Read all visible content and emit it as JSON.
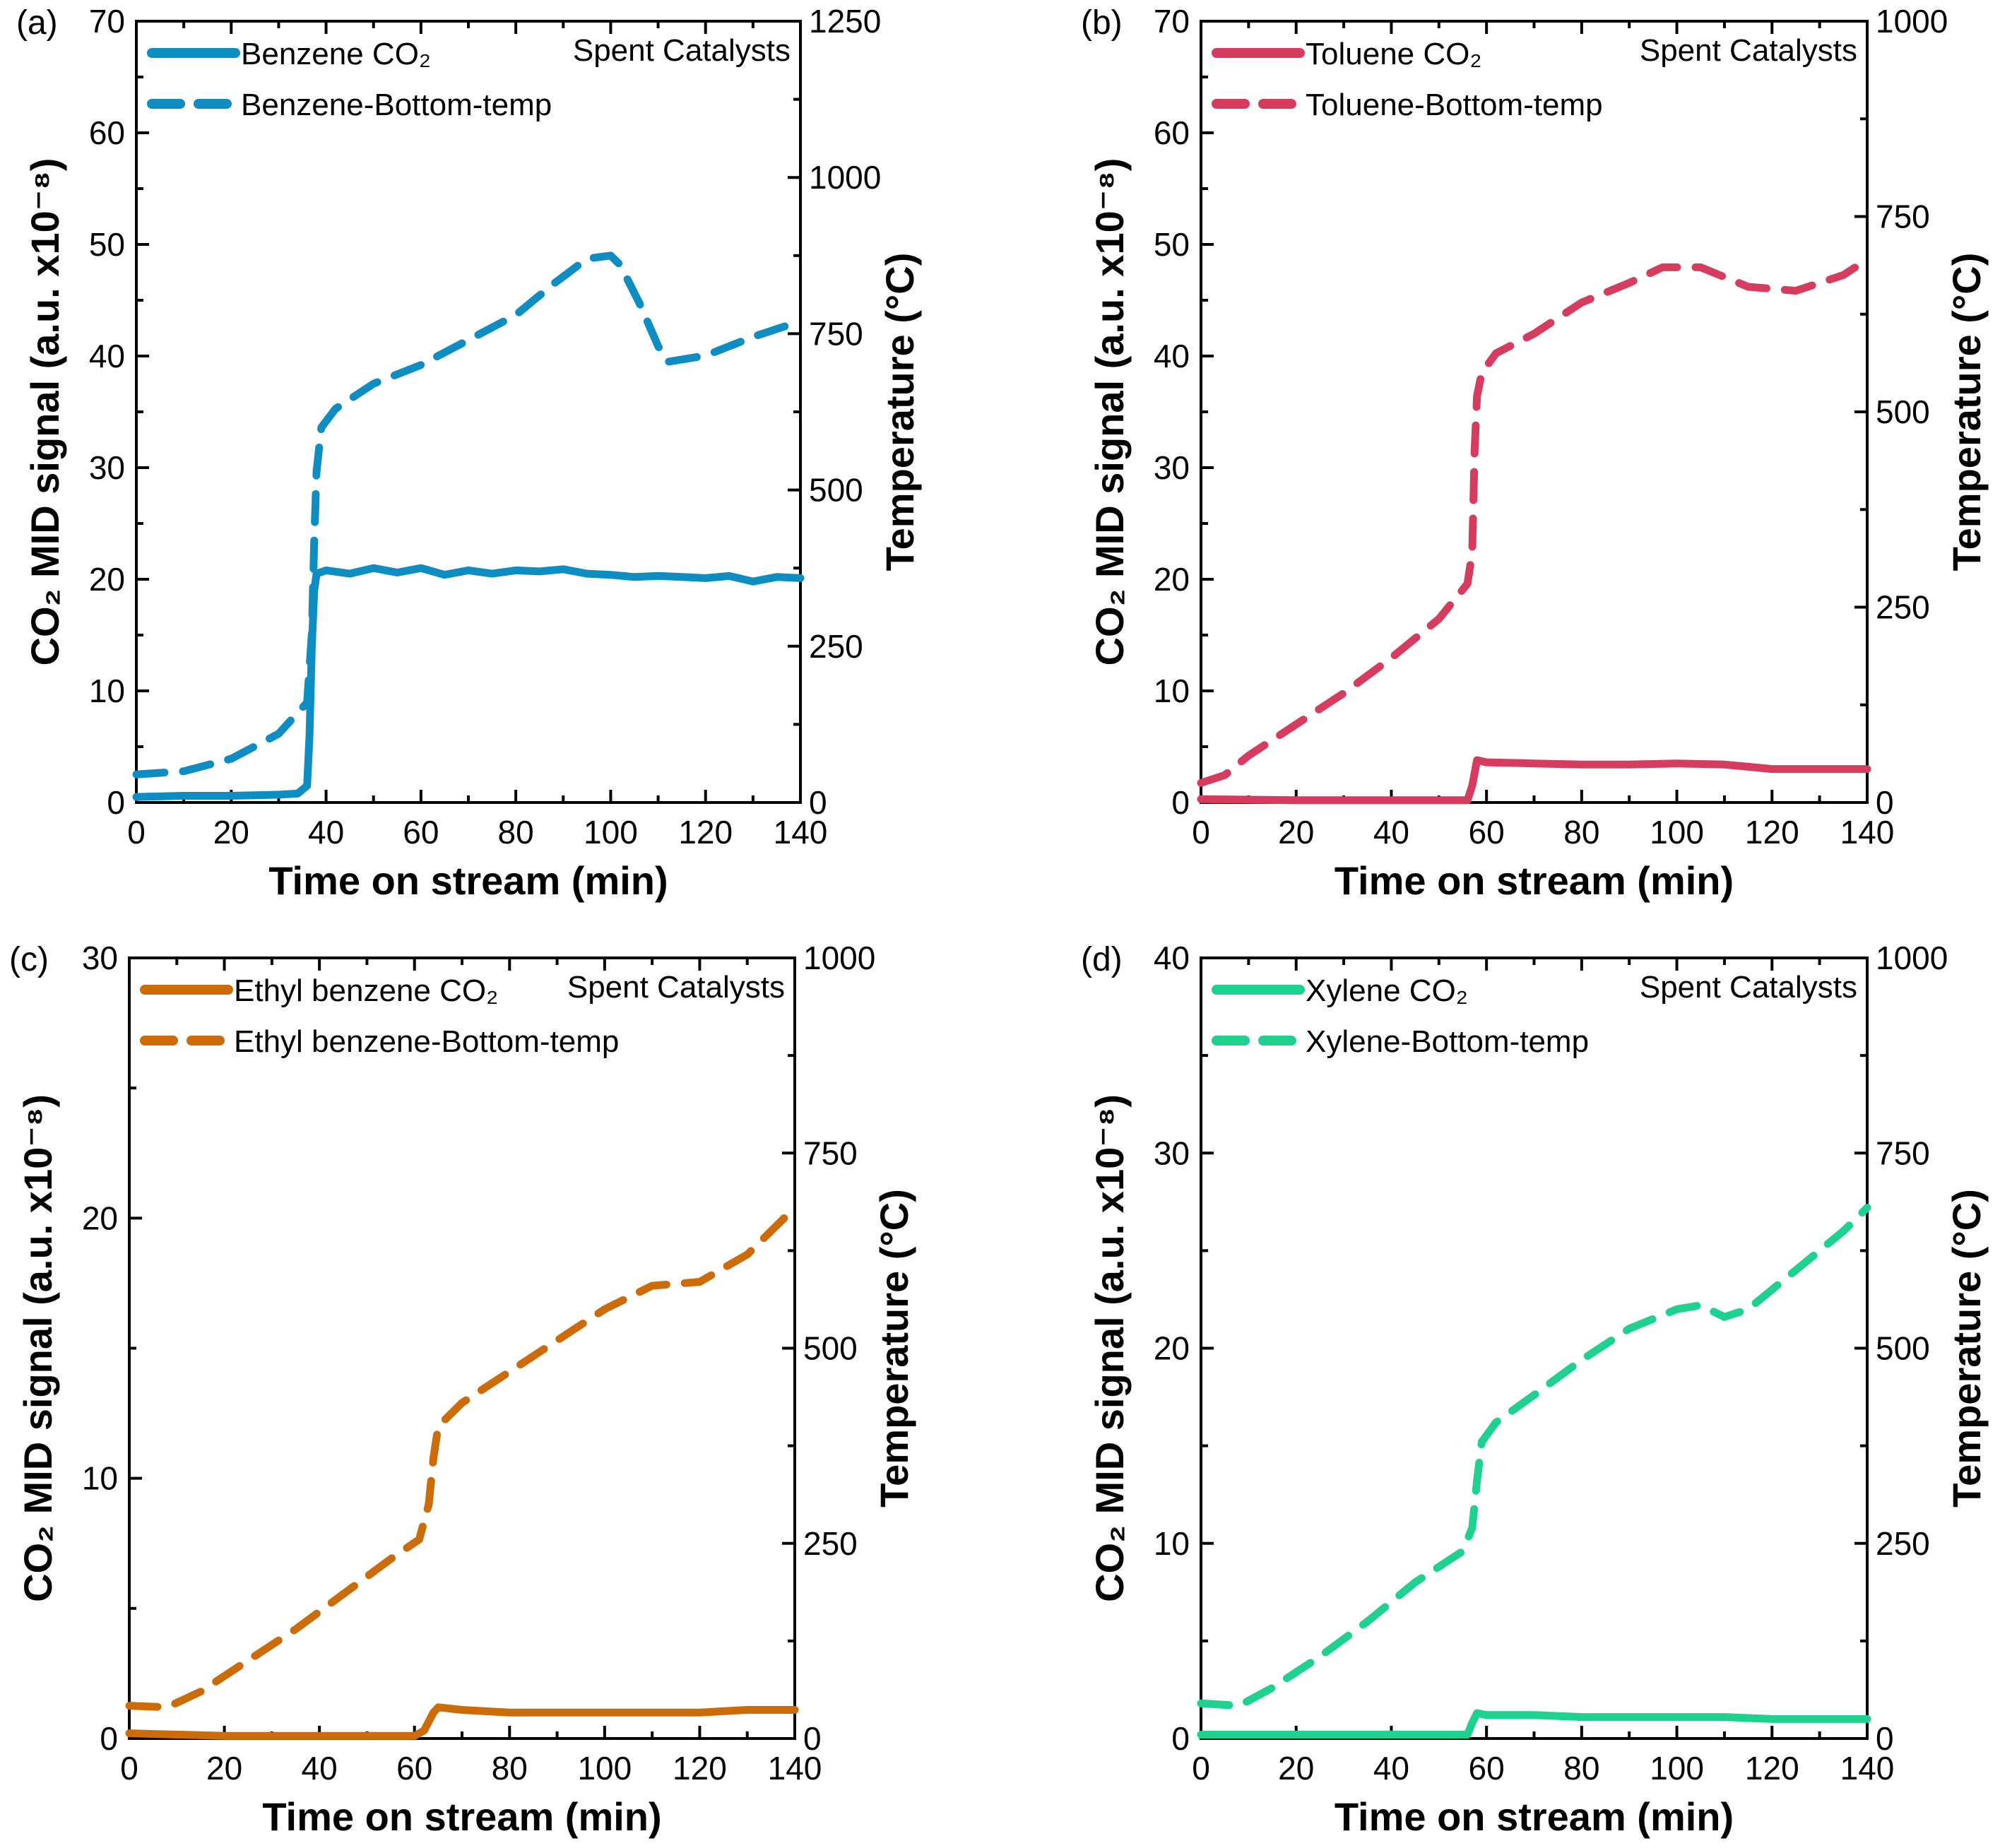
{
  "chart_data": [
    {
      "type": "line",
      "panel_label": "(a)",
      "title": "",
      "xlabel": "Time on stream (min)",
      "ylabel": "CO₂ MID signal (a.u. x10⁻⁸)",
      "y2label": "Temperature (°C)",
      "xlim": [
        0,
        140
      ],
      "ylim": [
        0,
        70
      ],
      "y2lim": [
        0,
        1250
      ],
      "xticks": [
        0,
        20,
        40,
        60,
        80,
        100,
        120,
        140
      ],
      "yticks": [
        0,
        10,
        20,
        30,
        40,
        50,
        60,
        70
      ],
      "y2ticks": [
        0,
        250,
        500,
        750,
        1000,
        1250
      ],
      "annotation": "Spent Catalysts",
      "color": "#0e8dc3",
      "legend_position": "top-left",
      "series": [
        {
          "name": "Benzene CO₂",
          "axis": "left",
          "style": "solid",
          "points": [
            [
              0,
              0.5
            ],
            [
              10,
              0.6
            ],
            [
              20,
              0.6
            ],
            [
              30,
              0.7
            ],
            [
              34,
              0.8
            ],
            [
              36,
              1.5
            ],
            [
              36.5,
              6
            ],
            [
              37,
              14
            ],
            [
              37.5,
              19
            ],
            [
              38,
              20.5
            ],
            [
              40,
              20.8
            ],
            [
              45,
              20.5
            ],
            [
              50,
              21
            ],
            [
              55,
              20.6
            ],
            [
              60,
              21
            ],
            [
              65,
              20.4
            ],
            [
              70,
              20.8
            ],
            [
              75,
              20.5
            ],
            [
              80,
              20.8
            ],
            [
              85,
              20.7
            ],
            [
              90,
              20.9
            ],
            [
              95,
              20.5
            ],
            [
              100,
              20.4
            ],
            [
              105,
              20.2
            ],
            [
              110,
              20.3
            ],
            [
              115,
              20.2
            ],
            [
              120,
              20.1
            ],
            [
              125,
              20.3
            ],
            [
              130,
              19.8
            ],
            [
              135,
              20.2
            ],
            [
              140,
              20.1
            ]
          ]
        },
        {
          "name": "Benzene-Bottom-temp",
          "axis": "right",
          "style": "dashed",
          "points": [
            [
              0,
              45
            ],
            [
              10,
              50
            ],
            [
              20,
              70
            ],
            [
              30,
              110
            ],
            [
              36,
              160
            ],
            [
              37,
              270
            ],
            [
              37.5,
              420
            ],
            [
              38,
              530
            ],
            [
              39,
              600
            ],
            [
              42,
              630
            ],
            [
              50,
              670
            ],
            [
              60,
              700
            ],
            [
              70,
              740
            ],
            [
              80,
              780
            ],
            [
              88,
              830
            ],
            [
              95,
              870
            ],
            [
              100,
              875
            ],
            [
              102,
              860
            ],
            [
              106,
              800
            ],
            [
              110,
              730
            ],
            [
              112,
              705
            ],
            [
              120,
              715
            ],
            [
              130,
              745
            ],
            [
              140,
              770
            ]
          ]
        }
      ]
    },
    {
      "type": "line",
      "panel_label": "(b)",
      "title": "",
      "xlabel": "Time on stream (min)",
      "ylabel": "CO₂ MID signal (a.u. x10⁻⁸)",
      "y2label": "Temperature (°C)",
      "xlim": [
        0,
        140
      ],
      "ylim": [
        0,
        70
      ],
      "y2lim": [
        0,
        1000
      ],
      "xticks": [
        0,
        20,
        40,
        60,
        80,
        100,
        120,
        140
      ],
      "yticks": [
        0,
        10,
        20,
        30,
        40,
        50,
        60,
        70
      ],
      "y2ticks": [
        0,
        250,
        500,
        750,
        1000
      ],
      "annotation": "Spent Catalysts",
      "color": "#d63c5e",
      "legend_position": "top-left",
      "series": [
        {
          "name": "Toluene CO₂",
          "axis": "left",
          "style": "solid",
          "points": [
            [
              0,
              0.3
            ],
            [
              20,
              0.2
            ],
            [
              40,
              0.2
            ],
            [
              56,
              0.2
            ],
            [
              57,
              1.5
            ],
            [
              58,
              3.8
            ],
            [
              60,
              3.6
            ],
            [
              70,
              3.5
            ],
            [
              80,
              3.4
            ],
            [
              90,
              3.4
            ],
            [
              100,
              3.5
            ],
            [
              110,
              3.4
            ],
            [
              115,
              3.2
            ],
            [
              120,
              3
            ],
            [
              130,
              3
            ],
            [
              140,
              3
            ]
          ]
        },
        {
          "name": "Toluene-Bottom-temp",
          "axis": "right",
          "style": "dashed",
          "points": [
            [
              0,
              25
            ],
            [
              5,
              35
            ],
            [
              10,
              60
            ],
            [
              20,
              100
            ],
            [
              30,
              140
            ],
            [
              40,
              185
            ],
            [
              50,
              235
            ],
            [
              56,
              280
            ],
            [
              57,
              320
            ],
            [
              57.5,
              450
            ],
            [
              58,
              520
            ],
            [
              59,
              550
            ],
            [
              62,
              575
            ],
            [
              70,
              600
            ],
            [
              80,
              640
            ],
            [
              90,
              665
            ],
            [
              97,
              685
            ],
            [
              105,
              685
            ],
            [
              115,
              660
            ],
            [
              125,
              655
            ],
            [
              135,
              675
            ],
            [
              140,
              695
            ]
          ]
        }
      ]
    },
    {
      "type": "line",
      "panel_label": "(c)",
      "title": "",
      "xlabel": "Time on stream (min)",
      "ylabel": "CO₂ MID signal (a.u. x10⁻⁸)",
      "y2label": "Temperature (°C)",
      "xlim": [
        0,
        140
      ],
      "ylim": [
        0,
        30
      ],
      "y2lim": [
        0,
        1000
      ],
      "xticks": [
        0,
        20,
        40,
        60,
        80,
        100,
        120,
        140
      ],
      "yticks": [
        0,
        10,
        20,
        30
      ],
      "y2ticks": [
        0,
        250,
        500,
        750,
        1000
      ],
      "annotation": "Spent Catalysts",
      "color": "#cc6c09",
      "legend_position": "top-left",
      "series": [
        {
          "name": "Ethyl benzene CO₂",
          "axis": "left",
          "style": "solid",
          "points": [
            [
              0,
              0.2
            ],
            [
              20,
              0.1
            ],
            [
              40,
              0.1
            ],
            [
              60,
              0.1
            ],
            [
              62,
              0.3
            ],
            [
              64,
              1
            ],
            [
              65,
              1.2
            ],
            [
              70,
              1.1
            ],
            [
              80,
              1.0
            ],
            [
              90,
              1.0
            ],
            [
              100,
              1.0
            ],
            [
              110,
              1.0
            ],
            [
              120,
              1.0
            ],
            [
              130,
              1.1
            ],
            [
              140,
              1.1
            ]
          ]
        },
        {
          "name": "Ethyl benzene-Bottom-temp",
          "axis": "right",
          "style": "dashed",
          "points": [
            [
              0,
              42
            ],
            [
              8,
              40
            ],
            [
              15,
              60
            ],
            [
              25,
              100
            ],
            [
              35,
              140
            ],
            [
              45,
              185
            ],
            [
              55,
              230
            ],
            [
              61,
              255
            ],
            [
              63,
              300
            ],
            [
              64,
              360
            ],
            [
              65,
              400
            ],
            [
              70,
              430
            ],
            [
              80,
              470
            ],
            [
              90,
              510
            ],
            [
              100,
              550
            ],
            [
              110,
              580
            ],
            [
              120,
              585
            ],
            [
              130,
              620
            ],
            [
              140,
              680
            ]
          ]
        }
      ]
    },
    {
      "type": "line",
      "panel_label": "(d)",
      "title": "",
      "xlabel": "Time on stream (min)",
      "ylabel": "CO₂ MID signal (a.u. x10⁻⁸)",
      "y2label": "Temperature (°C)",
      "xlim": [
        0,
        140
      ],
      "ylim": [
        0,
        40
      ],
      "y2lim": [
        0,
        1000
      ],
      "xticks": [
        0,
        20,
        40,
        60,
        80,
        100,
        120,
        140
      ],
      "yticks": [
        0,
        10,
        20,
        30,
        40
      ],
      "y2ticks": [
        0,
        250,
        500,
        750,
        1000
      ],
      "annotation": "Spent Catalysts",
      "color": "#1fd18f",
      "legend_position": "top-left",
      "series": [
        {
          "name": "Xylene CO₂",
          "axis": "left",
          "style": "solid",
          "points": [
            [
              0,
              0.2
            ],
            [
              20,
              0.2
            ],
            [
              40,
              0.2
            ],
            [
              56,
              0.2
            ],
            [
              57,
              0.8
            ],
            [
              58,
              1.3
            ],
            [
              60,
              1.2
            ],
            [
              70,
              1.2
            ],
            [
              80,
              1.1
            ],
            [
              90,
              1.1
            ],
            [
              100,
              1.1
            ],
            [
              110,
              1.1
            ],
            [
              120,
              1.0
            ],
            [
              130,
              1.0
            ],
            [
              140,
              1.0
            ]
          ]
        },
        {
          "name": "Xylene-Bottom-temp",
          "axis": "right",
          "style": "dashed",
          "points": [
            [
              0,
              45
            ],
            [
              8,
              42
            ],
            [
              15,
              65
            ],
            [
              25,
              105
            ],
            [
              35,
              150
            ],
            [
              45,
              200
            ],
            [
              55,
              240
            ],
            [
              57,
              270
            ],
            [
              58,
              330
            ],
            [
              59,
              380
            ],
            [
              62,
              405
            ],
            [
              70,
              440
            ],
            [
              80,
              485
            ],
            [
              90,
              525
            ],
            [
              100,
              550
            ],
            [
              105,
              555
            ],
            [
              110,
              540
            ],
            [
              115,
              550
            ],
            [
              125,
              600
            ],
            [
              135,
              650
            ],
            [
              140,
              680
            ]
          ]
        }
      ]
    }
  ]
}
